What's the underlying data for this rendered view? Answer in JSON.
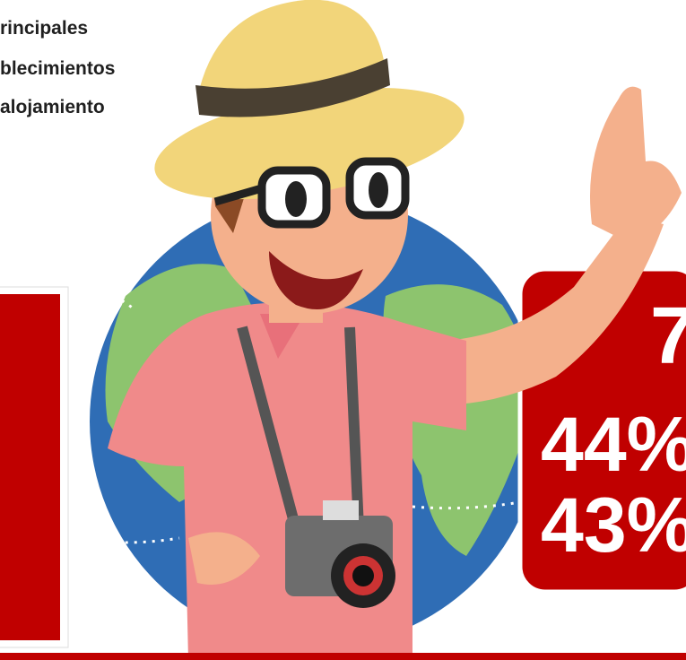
{
  "header": {
    "lines": [
      "rincipales",
      "blecimientos",
      "alojamiento"
    ]
  },
  "right_box": {
    "lines": [
      "7",
      "44%",
      "43%"
    ]
  }
}
